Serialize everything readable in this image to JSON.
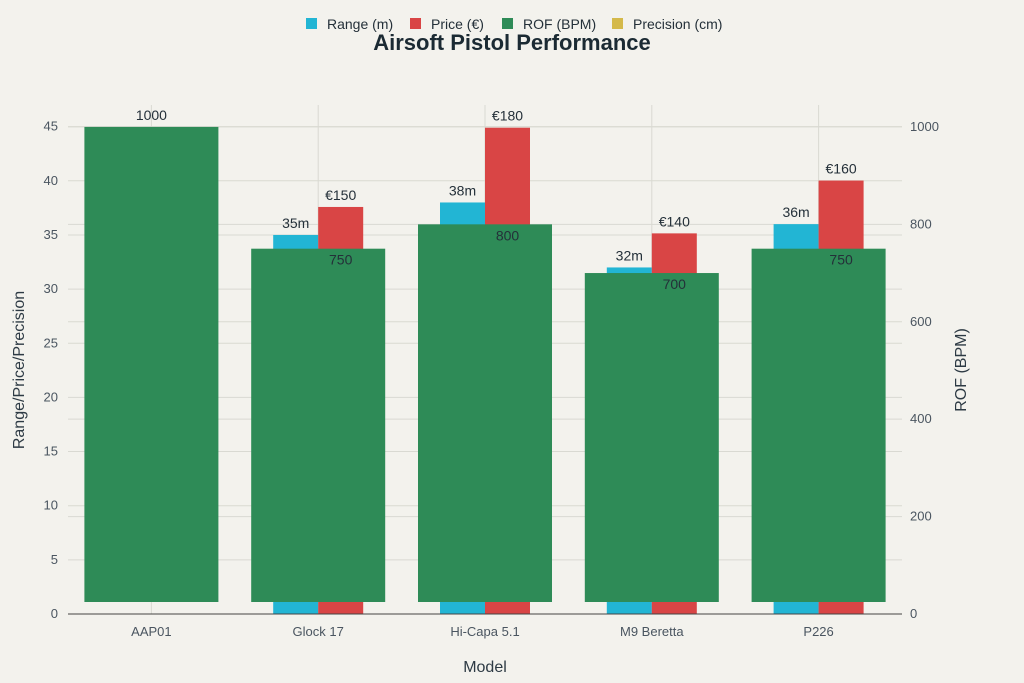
{
  "chart_data": {
    "type": "bar",
    "title": "Airsoft Pistol Performance",
    "xlabel": "Model",
    "ylabel": "Range/Price/Precision",
    "y2label": "ROF (BPM)",
    "categories": [
      "AAP01",
      "Glock 17",
      "Hi-Capa 5.1",
      "M9 Beretta",
      "P226"
    ],
    "ylim": [
      0,
      47
    ],
    "y2lim": [
      0,
      1045
    ],
    "yticks": [
      0,
      5,
      10,
      15,
      20,
      25,
      30,
      35,
      40,
      45
    ],
    "y2ticks": [
      0,
      200,
      400,
      600,
      800,
      1000
    ],
    "grid": true,
    "legend_position": "top",
    "series": [
      {
        "name": "Range (m)",
        "axis": "left",
        "color": "#22b5d4",
        "values": [
          null,
          35,
          38,
          32,
          36
        ],
        "labels": [
          "",
          "35m",
          "38m",
          "32m",
          "36m"
        ]
      },
      {
        "name": "Price (€)",
        "axis": "left",
        "color": "#d94545",
        "values": [
          null,
          150,
          180,
          140,
          160
        ],
        "labels": [
          "",
          "€150",
          "€180",
          "€140",
          "€160"
        ]
      },
      {
        "name": "ROF (BPM)",
        "axis": "right",
        "color": "#2e8b57",
        "values": [
          1000,
          750,
          800,
          700,
          750
        ],
        "labels": [
          "1000",
          "750",
          "800",
          "700",
          "750"
        ]
      },
      {
        "name": "Precision (cm)",
        "axis": "left",
        "color": "#d4b94a",
        "values": [
          null,
          null,
          null,
          null,
          null
        ],
        "labels": [
          "",
          "",
          "",
          "",
          ""
        ]
      }
    ]
  }
}
